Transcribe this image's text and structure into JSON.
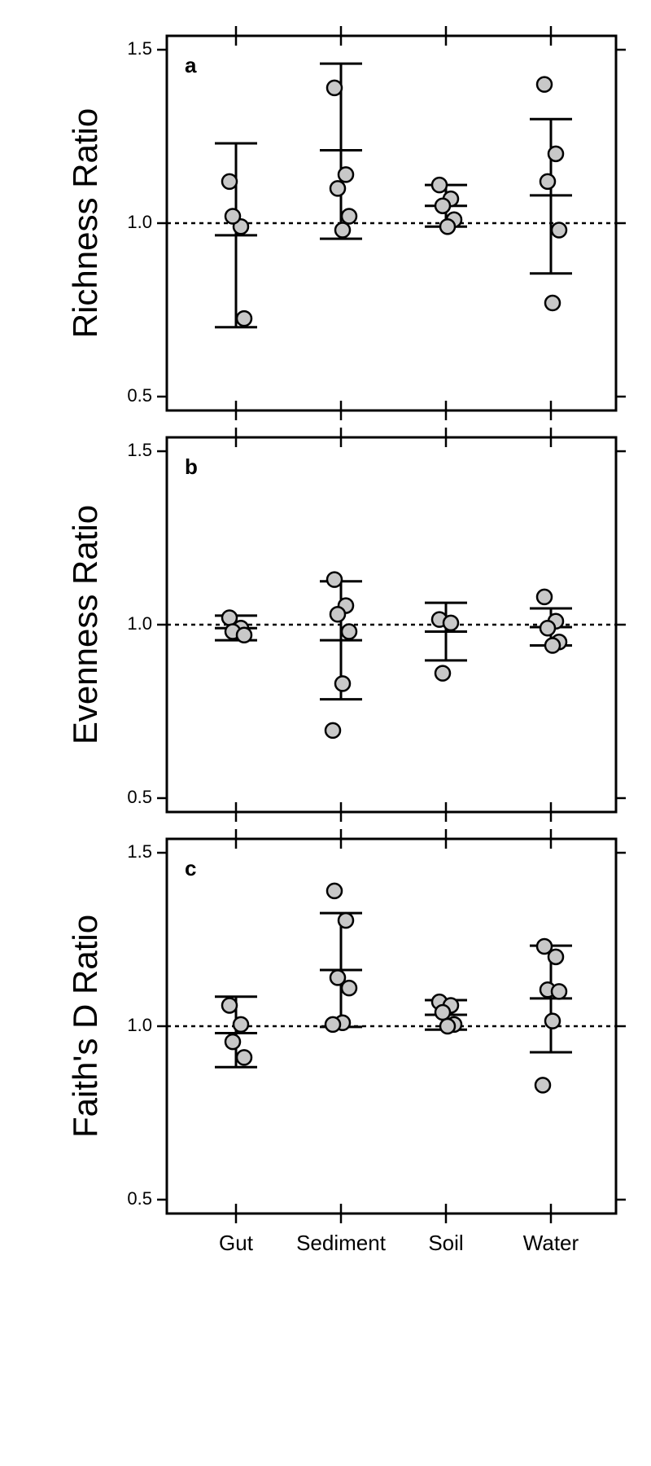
{
  "chart_data": [
    {
      "type": "strip",
      "panel_label": "a",
      "ylabel": "Richness Ratio",
      "points": [
        [
          1.12,
          0.99,
          1.02,
          0.725
        ],
        [
          1.39,
          1.14,
          1.1,
          1.02,
          0.98
        ],
        [
          1.11,
          1.07,
          1.05,
          1.01,
          0.99
        ],
        [
          1.4,
          1.2,
          1.12,
          0.98,
          0.77
        ]
      ],
      "mean": [
        0.965,
        1.21,
        1.05,
        1.08
      ],
      "upper": [
        1.23,
        1.46,
        1.11,
        1.3
      ],
      "lower": [
        0.7,
        0.955,
        0.99,
        0.855
      ],
      "ylim": [
        0.46,
        1.54
      ],
      "yticks": [
        0.5,
        {
          "value": 1,
          "label": "1.0"
        },
        1.5
      ],
      "reference_line": 1,
      "point_color": "#c8c8c8"
    },
    {
      "type": "strip",
      "panel_label": "b",
      "ylabel": "Evenness Ratio",
      "points": [
        [
          1.02,
          0.99,
          0.98,
          0.97
        ],
        [
          1.13,
          1.055,
          1.03,
          0.98,
          0.83,
          0.695
        ],
        [
          1.015,
          1.005,
          0.86
        ],
        [
          1.08,
          1.01,
          0.99,
          0.95,
          0.94
        ]
      ],
      "mean": [
        0.99,
        0.955,
        0.98,
        0.993
      ],
      "upper": [
        1.026,
        1.125,
        1.063,
        1.047
      ],
      "lower": [
        0.955,
        0.785,
        0.897,
        0.94
      ],
      "ylim": [
        0.46,
        1.54
      ],
      "yticks": [
        0.5,
        {
          "value": 1,
          "label": "1.0"
        },
        1.5
      ],
      "reference_line": 1,
      "point_color": "#c8c8c8"
    },
    {
      "type": "strip",
      "panel_label": "c",
      "ylabel": "Faith's D Ratio",
      "categories": [
        "Gut",
        "Sediment",
        "Soil",
        "Water"
      ],
      "points": [
        [
          1.06,
          1.005,
          0.955,
          0.91
        ],
        [
          1.39,
          1.305,
          1.14,
          1.11,
          1.01,
          1.005
        ],
        [
          1.07,
          1.06,
          1.04,
          1.005,
          1.0
        ],
        [
          1.23,
          1.2,
          1.105,
          1.1,
          1.015,
          0.83
        ]
      ],
      "mean": [
        0.98,
        1.162,
        1.033,
        1.08
      ],
      "upper": [
        1.085,
        1.326,
        1.075,
        1.232
      ],
      "lower": [
        0.882,
        0.998,
        0.99,
        0.925
      ],
      "ylim": [
        0.46,
        1.54
      ],
      "yticks": [
        0.5,
        {
          "value": 1,
          "label": "1.0"
        },
        1.5
      ],
      "reference_line": 1,
      "point_color": "#c8c8c8"
    }
  ]
}
